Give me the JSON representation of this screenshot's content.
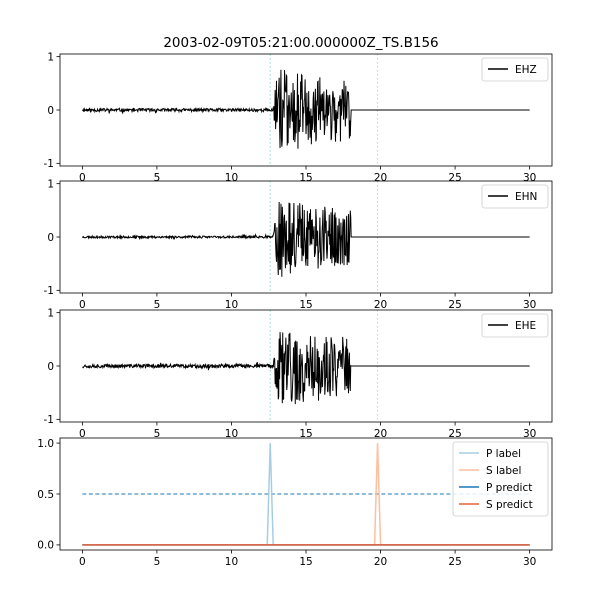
{
  "chart_data": {
    "title": "2003-02-09T05:21:00.000000Z_TS.B156",
    "x_range": [
      -1.5,
      31.5
    ],
    "x_ticks": [
      0,
      5,
      10,
      15,
      20,
      25,
      30
    ],
    "p_arrival": 12.6,
    "s_arrival": 19.8,
    "panels": [
      {
        "type": "line",
        "channel": "EHZ",
        "legend": [
          "EHZ"
        ],
        "legend_position": "top-right",
        "ylim": [
          -1.05,
          1.05
        ],
        "y_ticks": [
          -1,
          0,
          1
        ],
        "color": "#000000",
        "signal": {
          "t_end": 30,
          "noise_amp": 0.03,
          "event_start": 12.8,
          "event_amp": 0.85,
          "event_end": 18.0,
          "seed": 11
        }
      },
      {
        "type": "line",
        "channel": "EHN",
        "legend": [
          "EHN"
        ],
        "legend_position": "top-right",
        "ylim": [
          -1.05,
          1.05
        ],
        "y_ticks": [
          -1,
          0,
          1
        ],
        "color": "#000000",
        "signal": {
          "t_end": 30,
          "noise_amp": 0.02,
          "event_start": 12.8,
          "event_amp": 0.8,
          "event_end": 18.0,
          "seed": 23
        }
      },
      {
        "type": "line",
        "channel": "EHE",
        "legend": [
          "EHE"
        ],
        "legend_position": "top-right",
        "ylim": [
          -1.05,
          1.05
        ],
        "y_ticks": [
          -1,
          0,
          1
        ],
        "color": "#000000",
        "signal": {
          "t_end": 30,
          "noise_amp": 0.035,
          "event_start": 12.8,
          "event_amp": 0.85,
          "event_end": 18.0,
          "seed": 37
        }
      },
      {
        "type": "line",
        "legend": [
          "P label",
          "S label",
          "P predict",
          "S predict"
        ],
        "legend_position": "top-right",
        "ylim": [
          -0.05,
          1.05
        ],
        "y_ticks": [
          0.0,
          0.5,
          1.0
        ],
        "y_tick_labels": [
          "0.0",
          "0.5",
          "1.0"
        ],
        "threshold": {
          "value": 0.5,
          "color": "#1f77b4",
          "x_range": [
            0,
            30
          ]
        },
        "series": [
          {
            "name": "P label",
            "color": "#a6cee3",
            "x": [
              0,
              12.4,
              12.6,
              12.8,
              30
            ],
            "y": [
              0,
              0,
              1,
              0,
              0
            ]
          },
          {
            "name": "S label",
            "color": "#fdbf9f",
            "x": [
              0,
              19.6,
              19.8,
              20.0,
              30
            ],
            "y": [
              0,
              0,
              1,
              0,
              0
            ]
          },
          {
            "name": "P predict",
            "color": "#1f77b4",
            "x": [
              0,
              30
            ],
            "y": [
              0,
              0
            ]
          },
          {
            "name": "S predict",
            "color": "#e8643c",
            "x": [
              0,
              30
            ],
            "y": [
              0,
              0
            ]
          }
        ]
      }
    ]
  }
}
